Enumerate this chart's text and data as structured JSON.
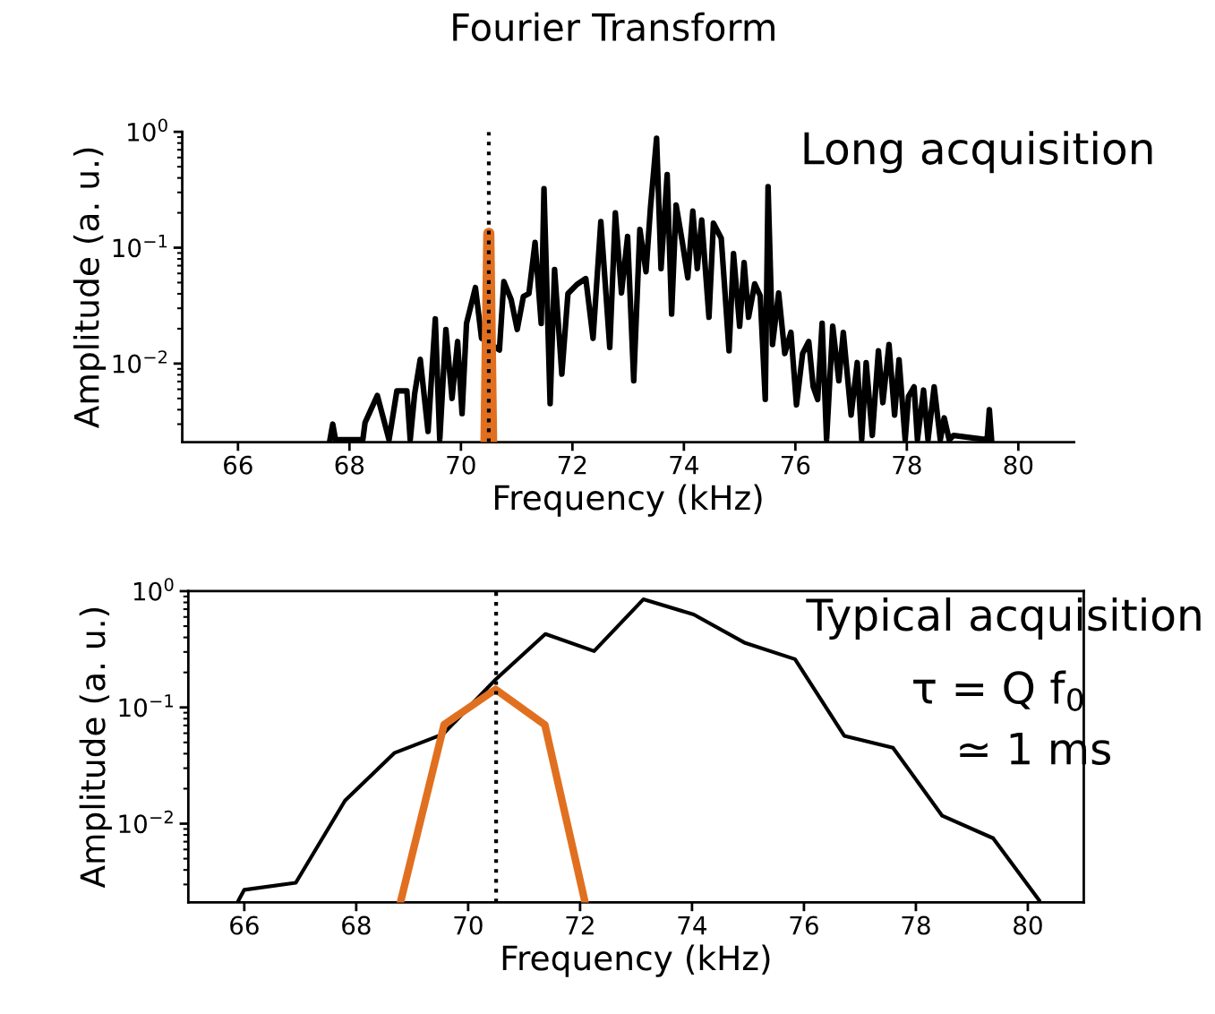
{
  "chart_data": [
    {
      "type": "line",
      "title": "Fourier Transform",
      "xlabel": "Frequency (kHz)",
      "ylabel": "Amplitude (a. u.)",
      "log": "y",
      "xlim": [
        65,
        81
      ],
      "xticks": [
        66,
        68,
        70,
        72,
        74,
        76,
        78,
        80
      ],
      "ylim": [
        0.0021,
        1
      ],
      "yticks": [
        {
          "value": 1,
          "label": "10$^{0}$"
        },
        {
          "value": 0.1,
          "label": "10$^{−1}$"
        },
        {
          "value": 0.01,
          "label": "10$^{−2}$"
        }
      ],
      "grid": false,
      "legend": false,
      "marker": "none",
      "ref_lines": [
        {
          "axis": "x",
          "value": 70.5,
          "color": "#000000",
          "line_style": "dotted"
        }
      ],
      "annotations": [
        "Long acquisition"
      ],
      "series": [
        {
          "color": "#000000",
          "x": [
            67.65,
            67.7,
            67.75,
            68.24,
            68.28,
            68.5,
            68.71,
            68.85,
            69.03,
            69.09,
            69.17,
            69.27,
            69.41,
            69.54,
            69.62,
            69.73,
            69.84,
            69.94,
            70.02,
            70.1,
            70.26,
            70.37,
            70.69,
            70.77,
            70.9,
            71.01,
            71.12,
            71.22,
            71.33,
            71.44,
            71.49,
            71.6,
            71.68,
            71.81,
            71.92,
            72.08,
            72.24,
            72.37,
            72.51,
            72.67,
            72.77,
            72.88,
            72.99,
            73.1,
            73.21,
            73.32,
            73.4,
            73.51,
            73.59,
            73.7,
            73.78,
            73.86,
            73.97,
            74.07,
            74.16,
            74.24,
            74.32,
            74.45,
            74.53,
            74.67,
            74.81,
            74.89,
            75.0,
            75.08,
            75.16,
            75.27,
            75.37,
            75.46,
            75.51,
            75.59,
            75.7,
            75.81,
            75.92,
            76.02,
            76.13,
            76.24,
            76.32,
            76.4,
            76.48,
            76.56,
            76.67,
            76.78,
            76.86,
            77.0,
            77.11,
            77.19,
            77.27,
            77.38,
            77.49,
            77.57,
            77.68,
            77.78,
            77.86,
            77.97,
            78.03,
            78.13,
            78.19,
            78.3,
            78.38,
            78.49,
            78.6,
            78.67,
            78.76,
            78.84,
            79.44,
            79.48,
            79.52
          ],
          "values": [
            0.0022,
            0.003,
            0.0022,
            0.0022,
            0.0031,
            0.0053,
            0.0022,
            0.0058,
            0.0058,
            0.0022,
            0.0055,
            0.0109,
            0.0026,
            0.0243,
            0.0022,
            0.0197,
            0.005,
            0.0155,
            0.0037,
            0.0222,
            0.0453,
            0.0165,
            0.0131,
            0.051,
            0.0357,
            0.0197,
            0.0379,
            0.0402,
            0.111,
            0.0222,
            0.323,
            0.0045,
            0.0648,
            0.0081,
            0.0402,
            0.0481,
            0.0542,
            0.0165,
            0.168,
            0.0138,
            0.2,
            0.0407,
            0.125,
            0.0071,
            0.144,
            0.062,
            0.22,
            0.88,
            0.066,
            0.428,
            0.0267,
            0.234,
            0.1135,
            0.055,
            0.207,
            0.066,
            0.173,
            0.0251,
            0.163,
            0.1205,
            0.0129,
            0.089,
            0.021,
            0.0745,
            0.0251,
            0.0488,
            0.0384,
            0.0049,
            0.336,
            0.0146,
            0.0407,
            0.0122,
            0.0186,
            0.0044,
            0.0122,
            0.0155,
            0.0063,
            0.0049,
            0.0223,
            0.0022,
            0.021,
            0.0071,
            0.0186,
            0.0036,
            0.0102,
            0.0022,
            0.0102,
            0.0024,
            0.0129,
            0.0046,
            0.0146,
            0.0036,
            0.0108,
            0.0022,
            0.0052,
            0.0063,
            0.0022,
            0.0059,
            0.0022,
            0.0063,
            0.0022,
            0.0034,
            0.0022,
            0.0024,
            0.0022,
            0.004,
            0.0022
          ]
        },
        {
          "color": "#e07020",
          "x": [
            70.45,
            70.5,
            70.55
          ],
          "values": [
            0.0022,
            0.133,
            0.0022
          ]
        }
      ]
    },
    {
      "type": "line",
      "xlabel": "Frequency (kHz)",
      "ylabel": "Amplitude (a. u.)",
      "log": "y",
      "xlim": [
        65,
        81
      ],
      "xticks": [
        66,
        68,
        70,
        72,
        74,
        76,
        78,
        80
      ],
      "ylim": [
        0.0021,
        1
      ],
      "yticks": [
        {
          "value": 1,
          "label": "10$^{0}$"
        },
        {
          "value": 0.1,
          "label": "10$^{−1}$"
        },
        {
          "value": 0.01,
          "label": "10$^{−2}$"
        }
      ],
      "grid": false,
      "legend": false,
      "marker": "none",
      "ref_lines": [
        {
          "axis": "x",
          "value": 70.5,
          "color": "#000000",
          "line_style": "dotted"
        }
      ],
      "annotations": [
        "Typical acquisition",
        "τ = Q f$_{0}$",
        "≃ 1 ms"
      ],
      "series": [
        {
          "color": "#000000",
          "x": [
            65.9,
            66.0,
            66.92,
            67.8,
            68.68,
            69.55,
            70.47,
            71.38,
            72.25,
            73.13,
            74.03,
            74.95,
            75.84,
            76.72,
            77.59,
            78.47,
            79.38,
            80.2
          ],
          "values": [
            0.0022,
            0.0027,
            0.0031,
            0.0158,
            0.0405,
            0.0588,
            0.17,
            0.428,
            0.305,
            0.85,
            0.63,
            0.358,
            0.26,
            0.057,
            0.045,
            0.0117,
            0.0075,
            0.0022
          ]
        },
        {
          "color": "#e07020",
          "x": [
            68.8,
            69.57,
            70.49,
            71.37,
            72.08
          ],
          "values": [
            0.0022,
            0.071,
            0.143,
            0.071,
            0.0022
          ]
        }
      ]
    }
  ]
}
